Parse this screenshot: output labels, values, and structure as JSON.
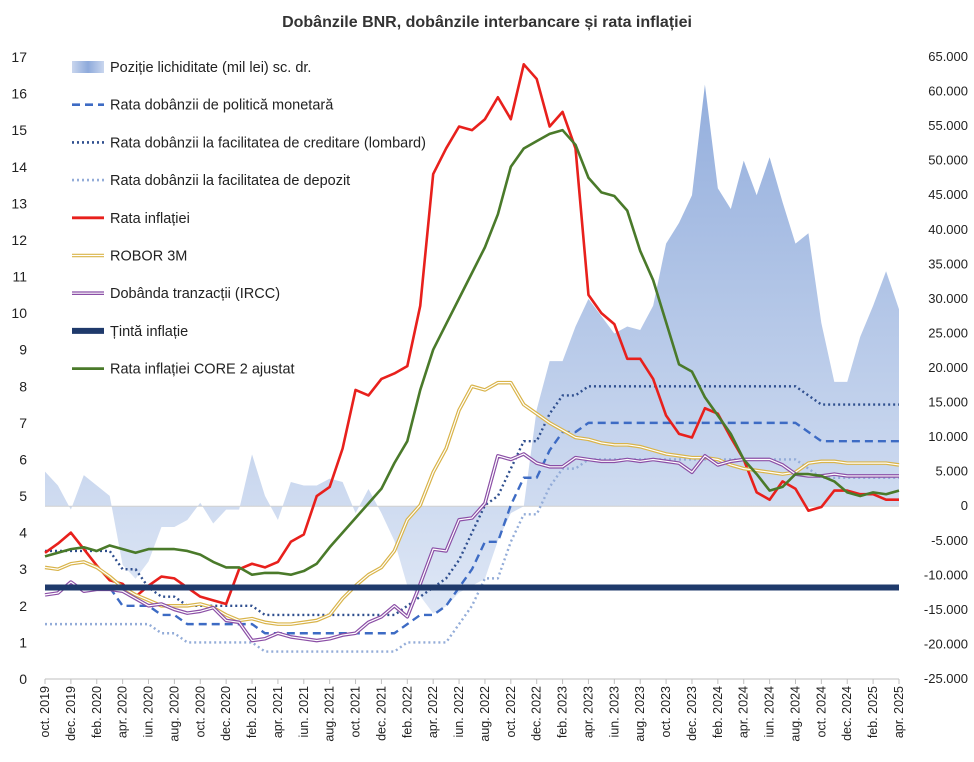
{
  "chart_data": {
    "type": "line",
    "title": "Dobânzile  BNR, dobânzile  interbancare  și rata  inflației",
    "x_tick_labels": [
      "oct. 2019",
      "dec. 2019",
      "feb. 2020",
      "apr. 2020",
      "iun. 2020",
      "aug. 2020",
      "oct. 2020",
      "dec. 2020",
      "feb. 2021",
      "apr. 2021",
      "iun. 2021",
      "aug. 2021",
      "oct. 2021",
      "dec. 2021",
      "feb. 2022",
      "apr. 2022",
      "iun. 2022",
      "aug. 2022",
      "oct. 2022",
      "dec. 2022",
      "feb. 2023",
      "apr. 2023",
      "iun. 2023",
      "aug. 2023",
      "oct. 2023",
      "dec. 2023",
      "feb. 2024",
      "apr. 2024",
      "iun. 2024",
      "aug. 2024",
      "oct. 2024",
      "dec. 2024",
      "feb. 2025",
      "apr. 2025"
    ],
    "y_left": {
      "min": 0,
      "max": 17,
      "step": 1
    },
    "y_right": {
      "min": -25000,
      "max": 65000,
      "step": 5000,
      "tick_labels": [
        "-25.000",
        "-20.000",
        "-15.000",
        "-10.000",
        "-5.000",
        "0",
        "5.000",
        "10.000",
        "15.000",
        "20.000",
        "25.000",
        "30.000",
        "35.000",
        "40.000",
        "45.000",
        "50.000",
        "55.000",
        "60.000",
        "65.000"
      ]
    },
    "grid": false,
    "legend_position": "top-left",
    "series": [
      {
        "name": "Poziție lichiditate (mil lei) sc. dr.",
        "type": "area",
        "axis": "right",
        "color": "#9db4de",
        "values": [
          5000,
          3000,
          -500,
          4500,
          3000,
          1500,
          -8500,
          -10500,
          -8000,
          -3000,
          -3000,
          -2000,
          500,
          -2500,
          -500,
          -500,
          7500,
          1500,
          -2000,
          3500,
          3000,
          3000,
          4000,
          3500,
          -1000,
          2500,
          -1000,
          -5000,
          -11500,
          -13000,
          -15500,
          -14500,
          -12500,
          -11500,
          -10500,
          -5000,
          -1000,
          0,
          14000,
          21000,
          21000,
          26000,
          30000,
          27500,
          25000,
          26000,
          25500,
          29000,
          38000,
          41000,
          45000,
          61000,
          46000,
          43000,
          50000,
          45000,
          50500,
          44000,
          38000,
          39500,
          26500,
          18000,
          18000,
          24500,
          29000,
          34000,
          28500
        ]
      },
      {
        "name": "Rata dobânzii de politică monetară",
        "type": "line",
        "axis": "left",
        "color": "#3d6bc4",
        "dash": "8,5",
        "values": [
          2.5,
          2.5,
          2.5,
          2.5,
          2.5,
          2.5,
          2.0,
          2.0,
          2.0,
          1.75,
          1.75,
          1.5,
          1.5,
          1.5,
          1.5,
          1.5,
          1.5,
          1.25,
          1.25,
          1.25,
          1.25,
          1.25,
          1.25,
          1.25,
          1.25,
          1.25,
          1.25,
          1.25,
          1.5,
          1.75,
          1.75,
          2.0,
          2.5,
          3.0,
          3.75,
          3.75,
          4.75,
          5.5,
          5.5,
          6.25,
          6.75,
          6.75,
          7.0,
          7.0,
          7.0,
          7.0,
          7.0,
          7.0,
          7.0,
          7.0,
          7.0,
          7.0,
          7.0,
          7.0,
          7.0,
          7.0,
          7.0,
          7.0,
          7.0,
          6.75,
          6.5,
          6.5,
          6.5,
          6.5,
          6.5,
          6.5,
          6.5
        ]
      },
      {
        "name": "Rata dobânzii la facilitatea de creditare (lombard)",
        "type": "line",
        "axis": "left",
        "color": "#2f4f8f",
        "dash": "2,3",
        "values": [
          3.5,
          3.5,
          3.5,
          3.5,
          3.5,
          3.5,
          3.0,
          3.0,
          2.5,
          2.25,
          2.25,
          2.0,
          2.0,
          2.0,
          2.0,
          2.0,
          2.0,
          1.75,
          1.75,
          1.75,
          1.75,
          1.75,
          1.75,
          1.75,
          1.75,
          1.75,
          1.75,
          1.75,
          2.0,
          2.25,
          2.5,
          2.75,
          3.25,
          4.0,
          4.75,
          5.0,
          5.75,
          6.5,
          6.5,
          7.25,
          7.75,
          7.75,
          8.0,
          8.0,
          8.0,
          8.0,
          8.0,
          8.0,
          8.0,
          8.0,
          8.0,
          8.0,
          8.0,
          8.0,
          8.0,
          8.0,
          8.0,
          8.0,
          8.0,
          7.75,
          7.5,
          7.5,
          7.5,
          7.5,
          7.5,
          7.5,
          7.5
        ]
      },
      {
        "name": "Rata dobânzii la facilitatea de depozit",
        "type": "line",
        "axis": "left",
        "color": "#93acd8",
        "dash": "2,3",
        "values": [
          1.5,
          1.5,
          1.5,
          1.5,
          1.5,
          1.5,
          1.5,
          1.5,
          1.5,
          1.25,
          1.25,
          1.0,
          1.0,
          1.0,
          1.0,
          1.0,
          1.0,
          0.75,
          0.75,
          0.75,
          0.75,
          0.75,
          0.75,
          0.75,
          0.75,
          0.75,
          0.75,
          0.75,
          1.0,
          1.0,
          1.0,
          1.0,
          1.5,
          2.0,
          2.75,
          2.75,
          3.75,
          4.5,
          4.5,
          5.25,
          5.75,
          5.75,
          6.0,
          6.0,
          6.0,
          6.0,
          6.0,
          6.0,
          6.0,
          6.0,
          6.0,
          6.0,
          6.0,
          6.0,
          6.0,
          6.0,
          6.0,
          6.0,
          6.0,
          5.75,
          5.5,
          5.5,
          5.5,
          5.5,
          5.5,
          5.5,
          5.5
        ]
      },
      {
        "name": "Rata inflației",
        "type": "line",
        "axis": "left",
        "color": "#e8201c",
        "values": [
          3.45,
          3.7,
          4.0,
          3.55,
          3.1,
          2.7,
          2.6,
          2.25,
          2.55,
          2.8,
          2.75,
          2.5,
          2.25,
          2.15,
          2.05,
          3.0,
          3.15,
          3.05,
          3.2,
          3.75,
          3.95,
          5.0,
          5.25,
          6.3,
          7.9,
          7.75,
          8.2,
          8.35,
          8.55,
          10.2,
          13.8,
          14.5,
          15.1,
          15.0,
          15.3,
          15.9,
          15.3,
          16.8,
          16.4,
          15.1,
          15.5,
          14.5,
          10.5,
          10.0,
          9.7,
          8.75,
          8.75,
          8.2,
          7.2,
          6.7,
          6.6,
          7.4,
          7.25,
          6.6,
          6.0,
          5.1,
          4.9,
          5.4,
          5.2,
          4.6,
          4.7,
          5.15,
          5.15,
          5.05,
          5.05,
          4.9,
          4.9
        ]
      },
      {
        "name": "ROBOR 3M",
        "type": "line",
        "axis": "left",
        "color": "#d9b44a",
        "double": true,
        "values": [
          3.05,
          3.0,
          3.15,
          3.2,
          3.05,
          2.8,
          2.5,
          2.3,
          2.15,
          2.0,
          2.0,
          2.0,
          2.05,
          1.95,
          1.75,
          1.6,
          1.65,
          1.55,
          1.5,
          1.5,
          1.55,
          1.6,
          1.75,
          2.2,
          2.55,
          2.85,
          3.05,
          3.5,
          4.35,
          4.75,
          5.65,
          6.3,
          7.35,
          8.0,
          7.9,
          8.1,
          8.1,
          7.5,
          7.25,
          7.0,
          6.8,
          6.6,
          6.55,
          6.45,
          6.4,
          6.4,
          6.35,
          6.25,
          6.15,
          6.1,
          6.05,
          6.05,
          6.0,
          5.85,
          5.75,
          5.7,
          5.65,
          5.6,
          5.65,
          5.9,
          5.95,
          5.95,
          5.9,
          5.9,
          5.9,
          5.9,
          5.85
        ]
      },
      {
        "name": "Dobânda tranzacții (IRCC)",
        "type": "line",
        "axis": "left",
        "color": "#8b4fa6",
        "double": true,
        "values": [
          2.3,
          2.35,
          2.65,
          2.4,
          2.45,
          2.45,
          2.4,
          2.2,
          2.0,
          2.05,
          1.9,
          1.8,
          1.85,
          1.95,
          1.6,
          1.55,
          1.05,
          1.1,
          1.25,
          1.15,
          1.1,
          1.05,
          1.1,
          1.2,
          1.25,
          1.55,
          1.7,
          2.0,
          1.7,
          2.6,
          3.55,
          3.5,
          4.35,
          4.4,
          4.8,
          6.1,
          6.0,
          6.15,
          5.9,
          5.8,
          5.8,
          6.05,
          6.0,
          5.95,
          5.95,
          6.0,
          5.95,
          6.0,
          5.95,
          5.9,
          5.65,
          6.1,
          5.85,
          5.95,
          6.0,
          6.0,
          6.0,
          5.85,
          5.6,
          5.55,
          5.55,
          5.6,
          5.55,
          5.55,
          5.55,
          5.55,
          5.55
        ]
      },
      {
        "name": "Țintă inflație",
        "type": "line",
        "axis": "left",
        "color": "#1f3a6b",
        "thick": true,
        "values": [
          2.5,
          2.5,
          2.5,
          2.5,
          2.5,
          2.5,
          2.5,
          2.5,
          2.5,
          2.5,
          2.5,
          2.5,
          2.5,
          2.5,
          2.5,
          2.5,
          2.5,
          2.5,
          2.5,
          2.5,
          2.5,
          2.5,
          2.5,
          2.5,
          2.5,
          2.5,
          2.5,
          2.5,
          2.5,
          2.5,
          2.5,
          2.5,
          2.5,
          2.5,
          2.5,
          2.5,
          2.5,
          2.5,
          2.5,
          2.5,
          2.5,
          2.5,
          2.5,
          2.5,
          2.5,
          2.5,
          2.5,
          2.5,
          2.5,
          2.5,
          2.5,
          2.5,
          2.5,
          2.5,
          2.5,
          2.5,
          2.5,
          2.5,
          2.5,
          2.5,
          2.5,
          2.5,
          2.5,
          2.5,
          2.5,
          2.5,
          2.5
        ]
      },
      {
        "name": "Rata inflației CORE 2 ajustat",
        "type": "line",
        "axis": "left",
        "color": "#4a7a2a",
        "values": [
          3.35,
          3.45,
          3.55,
          3.6,
          3.5,
          3.65,
          3.55,
          3.45,
          3.55,
          3.55,
          3.55,
          3.5,
          3.4,
          3.2,
          3.05,
          3.05,
          2.85,
          2.9,
          2.9,
          2.85,
          2.95,
          3.15,
          3.6,
          4.0,
          4.4,
          4.8,
          5.2,
          5.9,
          6.5,
          7.9,
          9.0,
          9.7,
          10.4,
          11.1,
          11.8,
          12.7,
          14.0,
          14.5,
          14.7,
          14.9,
          15.0,
          14.6,
          13.7,
          13.3,
          13.2,
          12.8,
          11.7,
          10.9,
          9.75,
          8.6,
          8.4,
          7.7,
          7.2,
          6.7,
          6.0,
          5.6,
          5.15,
          5.25,
          5.6,
          5.6,
          5.55,
          5.4,
          5.1,
          5.0,
          5.1,
          5.05,
          5.15
        ]
      }
    ]
  }
}
